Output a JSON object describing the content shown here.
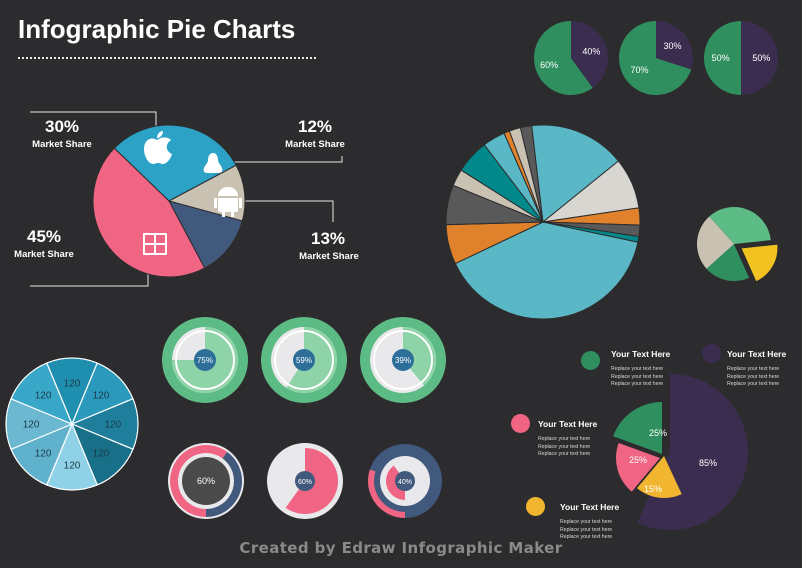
{
  "title": "Infographic Pie Charts",
  "footer": "Created by Edraw Infographic Maker",
  "colors": {
    "background": "#2c2c2e",
    "green": "#2f8f5f",
    "purple": "#3b2d4f",
    "blue": "#2ba2c6",
    "pink": "#ef6583",
    "slate": "#42597e",
    "beige": "#c9c2b3",
    "teal": "#5ab7c6",
    "orange": "#e0822b",
    "yellow": "#f2c320"
  },
  "market_share": {
    "apple": {
      "value": "30%",
      "label": "Market Share"
    },
    "linux": {
      "value": "12%",
      "label": "Market Share"
    },
    "android": {
      "value": "13%",
      "label": "Market Share"
    },
    "windows": {
      "value": "45%",
      "label": "Market Share"
    }
  },
  "legend": {
    "title": "Your Text Here",
    "body": "Replace your text here\nReplace your text here\nReplace your text here"
  },
  "chart_data": [
    {
      "type": "pie",
      "id": "small-pie-1",
      "slices": [
        {
          "label": "60%",
          "value": 60,
          "color": "#2f8f5f"
        },
        {
          "label": "40%",
          "value": 40,
          "color": "#3b2d4f"
        }
      ]
    },
    {
      "type": "pie",
      "id": "small-pie-2",
      "slices": [
        {
          "label": "70%",
          "value": 70,
          "color": "#2f8f5f"
        },
        {
          "label": "30%",
          "value": 30,
          "color": "#3b2d4f"
        }
      ]
    },
    {
      "type": "pie",
      "id": "small-pie-3",
      "slices": [
        {
          "label": "50%",
          "value": 50,
          "color": "#2f8f5f"
        },
        {
          "label": "50%",
          "value": 50,
          "color": "#3b2d4f"
        }
      ]
    },
    {
      "type": "pie",
      "id": "market-share-pie",
      "slices": [
        {
          "label": "30%",
          "value": 30,
          "icon": "apple-icon",
          "color": "#2ba2c6"
        },
        {
          "label": "12%",
          "value": 12,
          "icon": "linux-icon",
          "color": "#c9c2b3"
        },
        {
          "label": "13%",
          "value": 13,
          "icon": "android-icon",
          "color": "#42597e"
        },
        {
          "label": "45%",
          "value": 45,
          "icon": "windows-icon",
          "color": "#ef6583"
        }
      ]
    },
    {
      "type": "pie",
      "id": "multi-slice-pie",
      "slices": [
        {
          "value": 42,
          "color": "#5ab7c6"
        },
        {
          "value": 7,
          "color": "#e0822b"
        },
        {
          "value": 7,
          "color": "#595959"
        },
        {
          "value": 3,
          "color": "#c9c2b3"
        },
        {
          "value": 6,
          "color": "#00888a"
        },
        {
          "value": 4,
          "color": "#5ab7c6"
        },
        {
          "value": 1,
          "color": "#e0822b"
        },
        {
          "value": 2,
          "color": "#c9c2b3"
        },
        {
          "value": 2,
          "color": "#595959"
        },
        {
          "value": 17,
          "color": "#5ab7c6"
        },
        {
          "value": 9,
          "color": "#d8d6d0"
        },
        {
          "value": 3,
          "color": "#e0822b"
        },
        {
          "value": 2,
          "color": "#595959"
        },
        {
          "value": 1,
          "color": "#00888a"
        }
      ]
    },
    {
      "type": "pie",
      "id": "exploded-pie",
      "slices": [
        {
          "value": 35,
          "color": "#5dbb85"
        },
        {
          "value": 20,
          "color": "#f2c320"
        },
        {
          "value": 20,
          "color": "#2f8f5f"
        },
        {
          "value": 25,
          "color": "#c9c2b3"
        }
      ]
    },
    {
      "type": "pie",
      "id": "blue-eight-pie",
      "slices": [
        {
          "label": "120",
          "value": 120,
          "color": "#1f8fb0"
        },
        {
          "label": "120",
          "value": 120,
          "color": "#2a99bb"
        },
        {
          "label": "120",
          "value": 120,
          "color": "#1e7e9c"
        },
        {
          "label": "120",
          "value": 120,
          "color": "#186f88"
        },
        {
          "label": "120",
          "value": 120,
          "color": "#8fd1e6"
        },
        {
          "label": "120",
          "value": 120,
          "color": "#5fb1cc"
        },
        {
          "label": "120",
          "value": 120,
          "color": "#6cb8d1"
        },
        {
          "label": "120",
          "value": 120,
          "color": "#39a7c8"
        }
      ]
    },
    {
      "type": "pie",
      "id": "donut-green-1",
      "slices": [
        {
          "label": "75%",
          "value": 75,
          "color": "#8fd3a8"
        },
        {
          "value": 25,
          "color": "#e9e9ec"
        }
      ]
    },
    {
      "type": "pie",
      "id": "donut-green-2",
      "slices": [
        {
          "label": "59%",
          "value": 59,
          "color": "#8fd3a8"
        },
        {
          "value": 41,
          "color": "#e9e9ec"
        }
      ]
    },
    {
      "type": "pie",
      "id": "donut-green-3",
      "slices": [
        {
          "label": "39%",
          "value": 39,
          "color": "#8fd3a8"
        },
        {
          "value": 61,
          "color": "#e9e9ec"
        }
      ]
    },
    {
      "type": "pie",
      "id": "ring-pink-1",
      "slices": [
        {
          "label": "60%",
          "value": 60,
          "color": "#ef6583"
        },
        {
          "value": 40,
          "color": "#42597e"
        }
      ]
    },
    {
      "type": "pie",
      "id": "ring-pink-2",
      "slices": [
        {
          "label": "60%",
          "value": 60,
          "color": "#ef6583"
        },
        {
          "value": 40,
          "color": "#e9e9ec"
        }
      ]
    },
    {
      "type": "pie",
      "id": "ring-pink-3",
      "slices": [
        {
          "label": "40%",
          "value": 40,
          "color": "#ef6583"
        },
        {
          "value": 60,
          "color": "#42597e"
        }
      ]
    },
    {
      "type": "pie",
      "id": "legend-pie",
      "slices": [
        {
          "label": "25%",
          "value": 25,
          "color": "#2f8f5f"
        },
        {
          "label": "25%",
          "value": 25,
          "color": "#ef6583"
        },
        {
          "label": "15%",
          "value": 15,
          "color": "#f2b530"
        },
        {
          "label": "85%",
          "value": 85,
          "color": "#3b2d4f"
        }
      ]
    }
  ]
}
